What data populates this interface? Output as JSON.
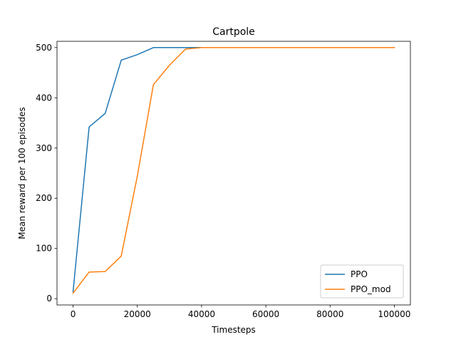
{
  "chart_data": {
    "type": "line",
    "title": "Cartpole",
    "xlabel": "Timesteps",
    "ylabel": "Mean reward per 100 episodes",
    "xlim": [
      -5000,
      105000
    ],
    "ylim": [
      -12.5,
      512.5
    ],
    "xticks": [
      0,
      20000,
      40000,
      60000,
      80000,
      100000
    ],
    "yticks": [
      0,
      100,
      200,
      300,
      400,
      500
    ],
    "grid": false,
    "legend_position": "lower-right",
    "series": [
      {
        "name": "PPO",
        "color": "#1f77b4",
        "x": [
          0,
          5000,
          10000,
          15000,
          20000,
          25000,
          30000,
          35000,
          40000,
          45000,
          50000,
          55000,
          60000,
          65000,
          70000,
          75000,
          80000,
          85000,
          90000,
          95000,
          100000
        ],
        "y": [
          14,
          342,
          369,
          475,
          486,
          500,
          500,
          500,
          500,
          500,
          500,
          500,
          500,
          500,
          500,
          500,
          500,
          500,
          500,
          500,
          500
        ]
      },
      {
        "name": "PPO_mod",
        "color": "#ff7f0e",
        "x": [
          0,
          5000,
          10000,
          15000,
          20000,
          25000,
          30000,
          35000,
          40000,
          45000,
          50000,
          55000,
          60000,
          65000,
          70000,
          75000,
          80000,
          85000,
          90000,
          95000,
          100000
        ],
        "y": [
          11,
          53,
          54,
          85,
          244,
          426,
          465,
          497,
          500,
          500,
          500,
          500,
          500,
          500,
          500,
          500,
          500,
          500,
          500,
          500,
          500
        ]
      }
    ]
  }
}
